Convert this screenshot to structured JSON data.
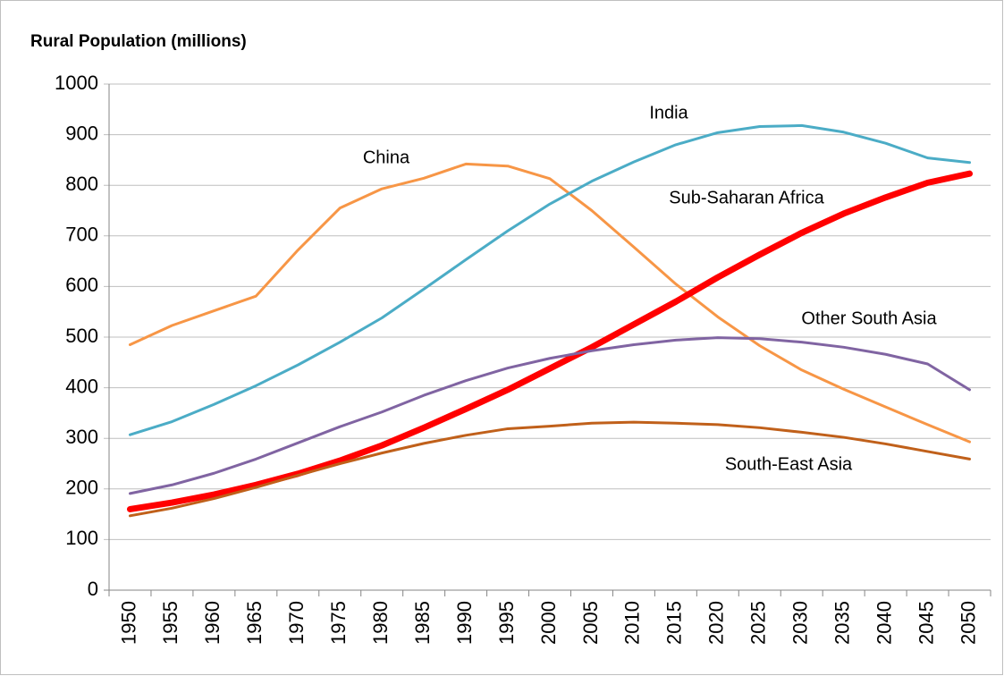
{
  "chart_data": {
    "type": "line",
    "title": "Rural Population (millions)",
    "categories": [
      "1950",
      "1955",
      "1960",
      "1965",
      "1970",
      "1975",
      "1980",
      "1985",
      "1990",
      "1995",
      "2000",
      "2005",
      "2010",
      "2015",
      "2020",
      "2025",
      "2030",
      "2035",
      "2040",
      "2045",
      "2050"
    ],
    "ylim": [
      0,
      1000
    ],
    "yticks": [
      0,
      100,
      200,
      300,
      400,
      500,
      600,
      700,
      800,
      900,
      1000
    ],
    "grid": true,
    "series": [
      {
        "name": "China",
        "color": "#F79646",
        "values": [
          485,
          523,
          552,
          581,
          672,
          755,
          793,
          814,
          842,
          838,
          813,
          750,
          678,
          605,
          540,
          483,
          435,
          397,
          362,
          327,
          293
        ]
      },
      {
        "name": "India",
        "color": "#4BACC6",
        "values": [
          307,
          333,
          367,
          404,
          445,
          490,
          538,
          595,
          653,
          710,
          763,
          808,
          846,
          880,
          904,
          916,
          918,
          905,
          883,
          854,
          845
        ]
      },
      {
        "name": "Sub-Saharan Africa",
        "color": "#FF0000",
        "values": [
          160,
          173,
          189,
          208,
          230,
          256,
          286,
          321,
          358,
          396,
          438,
          480,
          525,
          570,
          618,
          663,
          706,
          744,
          776,
          805,
          823
        ]
      },
      {
        "name": "Other South Asia",
        "color": "#8064A2",
        "values": [
          191,
          208,
          231,
          259,
          291,
          323,
          352,
          385,
          414,
          439,
          458,
          473,
          485,
          494,
          499,
          497,
          490,
          480,
          466,
          447,
          396
        ]
      },
      {
        "name": "South-East Asia",
        "color": "#C0601A",
        "values": [
          147,
          162,
          181,
          203,
          227,
          250,
          271,
          290,
          306,
          319,
          324,
          330,
          332,
          330,
          327,
          321,
          312,
          302,
          289,
          274,
          259
        ]
      }
    ]
  }
}
